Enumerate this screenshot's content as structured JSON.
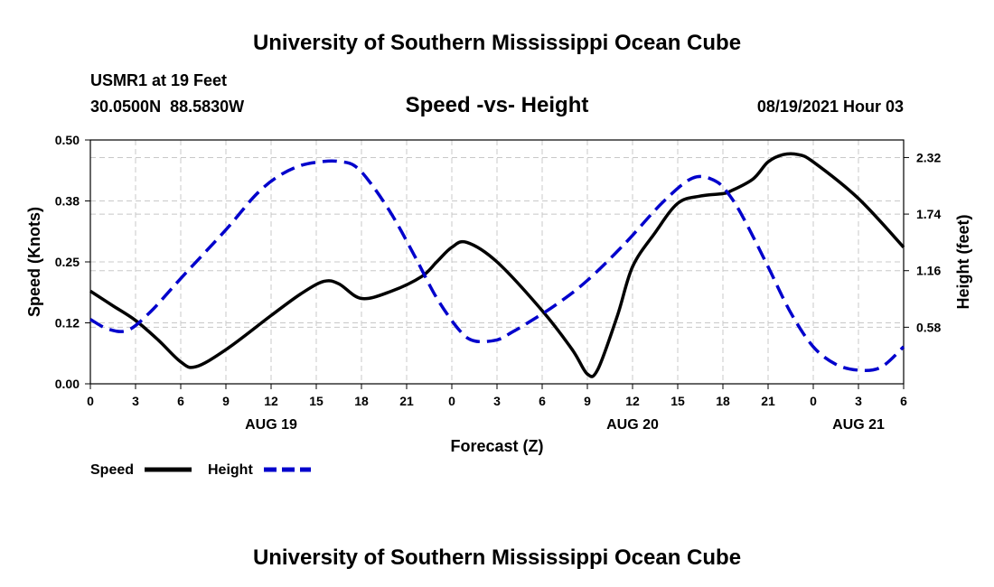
{
  "header": {
    "top_title": "University of Southern Mississippi Ocean Cube",
    "station": "USMR1 at 19 Feet",
    "coords": "30.0500N  88.5830W",
    "plot_title": "Speed -vs- Height",
    "datetime": "08/19/2021 Hour 03",
    "bottom_title": "University of Southern Mississippi Ocean Cube"
  },
  "chart_data": {
    "type": "line",
    "title": "Speed -vs- Height",
    "xlabel": "Forecast (Z)",
    "ylabel_left": "Speed (Knots)",
    "ylabel_right": "Height (feet)",
    "x_unit": "hours from Aug 19 00Z",
    "x_range": [
      0,
      54
    ],
    "x_ticks": [
      0,
      3,
      6,
      9,
      12,
      15,
      18,
      21,
      24,
      27,
      30,
      33,
      36,
      39,
      42,
      45,
      48,
      51,
      54
    ],
    "x_tick_labels": [
      "0",
      "3",
      "6",
      "9",
      "12",
      "15",
      "18",
      "21",
      "0",
      "3",
      "6",
      "9",
      "12",
      "15",
      "18",
      "21",
      "0",
      "3",
      "6"
    ],
    "day_labels": [
      {
        "x": 12,
        "label": "AUG 19"
      },
      {
        "x": 36,
        "label": "AUG 20"
      },
      {
        "x": 51,
        "label": "AUG 21"
      }
    ],
    "y_left_range": [
      0,
      0.5
    ],
    "y_left_ticks": [
      0,
      0.125,
      0.25,
      0.375,
      0.5
    ],
    "y_left_tick_labels": [
      "0.00",
      "0.12",
      "0.25",
      "0.38",
      "0.50"
    ],
    "y_right_range": [
      0,
      2.5
    ],
    "y_right_ticks": [
      0.58,
      1.16,
      1.74,
      2.32
    ],
    "y_right_tick_labels": [
      "0.58",
      "1.16",
      "1.74",
      "2.32"
    ],
    "grid": true,
    "legend_position": "bottom-left",
    "series": [
      {
        "name": "Speed",
        "axis": "left",
        "color": "#000000",
        "dash": "solid",
        "x": [
          0,
          1.5,
          3,
          4.5,
          6,
          7,
          9,
          12,
          14,
          15.5,
          16.5,
          18,
          20,
          22,
          23,
          24,
          25,
          27,
          30,
          32,
          33,
          33.7,
          35,
          36,
          37.5,
          39,
          40.5,
          42,
          42.5,
          44,
          45,
          46,
          47,
          48,
          51,
          54
        ],
        "y": [
          0.19,
          0.16,
          0.13,
          0.09,
          0.045,
          0.035,
          0.07,
          0.14,
          0.185,
          0.21,
          0.205,
          0.175,
          0.19,
          0.22,
          0.25,
          0.28,
          0.29,
          0.25,
          0.15,
          0.07,
          0.02,
          0.03,
          0.14,
          0.24,
          0.31,
          0.37,
          0.385,
          0.39,
          0.395,
          0.42,
          0.455,
          0.47,
          0.47,
          0.455,
          0.38,
          0.28
        ]
      },
      {
        "name": "Height",
        "axis": "right",
        "color": "#0000cc",
        "dash": "dashed",
        "x": [
          0,
          1.2,
          2.5,
          4,
          6,
          9,
          11,
          12.5,
          14,
          15.5,
          16.5,
          17.5,
          18.5,
          20,
          21.5,
          23,
          24.5,
          25.5,
          27,
          28,
          29,
          31,
          33,
          35.5,
          38,
          40,
          41.5,
          42.5,
          43.5,
          45,
          46.5,
          48,
          49.5,
          51,
          52.5,
          54
        ],
        "y": [
          0.66,
          0.56,
          0.55,
          0.74,
          1.08,
          1.58,
          1.94,
          2.13,
          2.24,
          2.28,
          2.28,
          2.24,
          2.08,
          1.74,
          1.32,
          0.88,
          0.55,
          0.44,
          0.45,
          0.53,
          0.62,
          0.82,
          1.06,
          1.44,
          1.86,
          2.11,
          2.08,
          1.92,
          1.66,
          1.2,
          0.73,
          0.38,
          0.2,
          0.14,
          0.17,
          0.38
        ]
      }
    ]
  },
  "legend": {
    "speed_label": "Speed",
    "height_label": "Height"
  }
}
